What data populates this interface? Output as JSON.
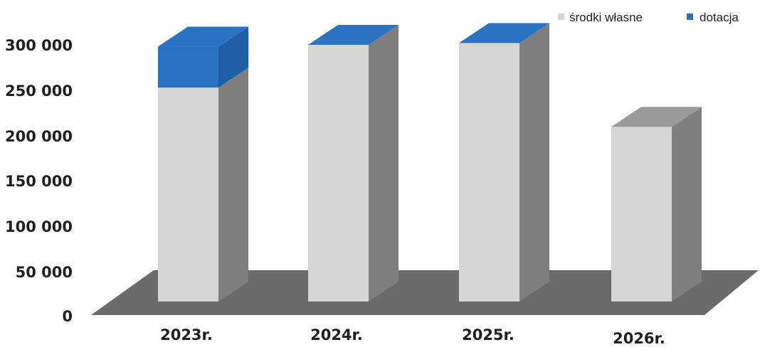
{
  "chart_data": {
    "type": "bar",
    "stacked": true,
    "three_d": true,
    "categories": [
      "2023r.",
      "2024r.",
      "2025r.",
      "2026r."
    ],
    "series": [
      {
        "name": "środki własne",
        "values": [
          240000,
          288000,
          290000,
          196000
        ],
        "color": "#d6d6d4"
      },
      {
        "name": "dotacja",
        "values": [
          46000,
          0,
          0,
          0
        ],
        "color": "#2a73c2"
      }
    ],
    "y_ticks": [
      "0",
      "50 000",
      "100 000",
      "150 000",
      "200 000",
      "250 000",
      "300 000"
    ],
    "ylim": [
      0,
      300000
    ],
    "grid": false,
    "legend_position": "top-right",
    "floor_color": "#6b6b6b",
    "side_color": "#7f7f7f",
    "top_color": "#9a9a9a"
  }
}
